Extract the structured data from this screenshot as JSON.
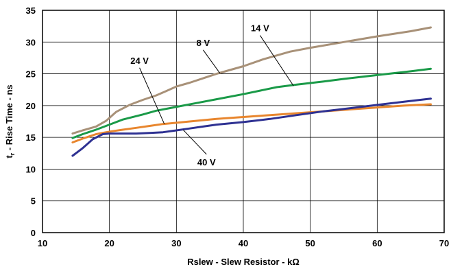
{
  "chart_data": {
    "type": "line",
    "xlabel": "Rslew - Slew Resistor - kΩ",
    "ylabel_main": "t",
    "ylabel_sub": "r",
    "ylabel_rest": " - Rise Time - ns",
    "xlim": [
      10,
      70
    ],
    "ylim": [
      0,
      35
    ],
    "xticks": [
      10,
      20,
      30,
      40,
      50,
      60,
      70
    ],
    "yticks": [
      0,
      5,
      10,
      15,
      20,
      25,
      30,
      35
    ],
    "grid": true,
    "series": [
      {
        "name": "8 V",
        "color": "#a89178",
        "x": [
          14.5,
          16,
          18,
          19.5,
          21,
          23,
          25,
          27,
          28.5,
          30,
          32,
          34,
          36,
          38,
          40,
          43,
          47,
          50,
          55,
          60,
          65,
          68
        ],
        "y": [
          15.6,
          16.1,
          16.7,
          17.6,
          19.0,
          20.1,
          20.9,
          21.6,
          22.3,
          23.0,
          23.6,
          24.3,
          25.0,
          25.6,
          26.2,
          27.3,
          28.5,
          29.1,
          30.0,
          30.9,
          31.7,
          32.3
        ]
      },
      {
        "name": "14 V",
        "color": "#1a9a48",
        "x": [
          14.5,
          16,
          18,
          20,
          22,
          25,
          27,
          29,
          31,
          33,
          36,
          40,
          45,
          48,
          52,
          55,
          60,
          65,
          68
        ],
        "y": [
          14.9,
          15.5,
          16.2,
          17.0,
          17.8,
          18.6,
          19.2,
          19.6,
          20.0,
          20.4,
          21.0,
          21.8,
          22.9,
          23.3,
          23.8,
          24.2,
          24.8,
          25.4,
          25.8
        ]
      },
      {
        "name": "24 V",
        "color": "#e8862e",
        "x": [
          14.5,
          16,
          18,
          20,
          22,
          24,
          26,
          28,
          30,
          32,
          34,
          36,
          40,
          44,
          48,
          52,
          56,
          60,
          64,
          68
        ],
        "y": [
          14.2,
          14.8,
          15.5,
          15.9,
          16.2,
          16.5,
          16.8,
          17.1,
          17.3,
          17.5,
          17.7,
          17.9,
          18.2,
          18.5,
          18.8,
          19.1,
          19.4,
          19.7,
          20.0,
          20.2
        ]
      },
      {
        "name": "40 V",
        "color": "#2e3192",
        "x": [
          14.5,
          16,
          17.5,
          19,
          20,
          22,
          24,
          26,
          28,
          30,
          32,
          34,
          36,
          40,
          44,
          48,
          52,
          56,
          60,
          64,
          68
        ],
        "y": [
          12.1,
          13.3,
          14.7,
          15.5,
          15.6,
          15.6,
          15.6,
          15.7,
          15.8,
          16.1,
          16.4,
          16.7,
          17.0,
          17.4,
          17.9,
          18.5,
          19.1,
          19.6,
          20.1,
          20.6,
          21.1
        ]
      }
    ],
    "annotations": [
      {
        "text": "8 V",
        "series": "8 V",
        "tx": 34,
        "ty": 29.4,
        "lx": 36.5,
        "ly": 25.1
      },
      {
        "text": "14 V",
        "series": "14 V",
        "tx": 42.5,
        "ty": 31.7,
        "lx": 47.5,
        "ly": 23.1
      },
      {
        "text": "24 V",
        "series": "24 V",
        "tx": 24.5,
        "ty": 26.6,
        "lx": 28.2,
        "ly": 17.1
      },
      {
        "text": "40 V",
        "series": "40 V",
        "tx": 34.5,
        "ty": 10.6,
        "lx": 31,
        "ly": 16.2
      }
    ]
  }
}
